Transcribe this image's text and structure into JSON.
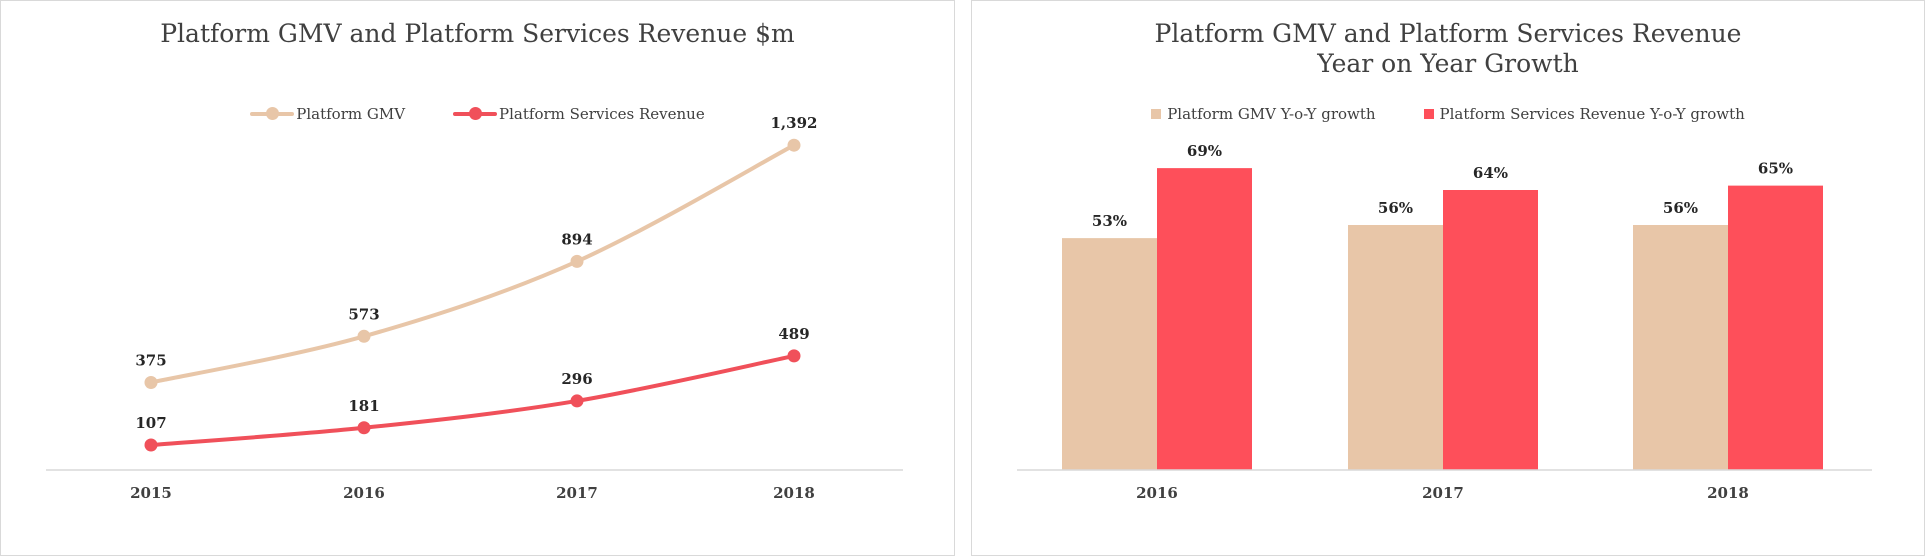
{
  "charts": {
    "left": {
      "title": "Platform GMV and Platform Services Revenue $m",
      "legend": [
        "Platform GMV",
        "Platform Services Revenue"
      ]
    },
    "right": {
      "title_line1": "Platform GMV and Platform Services Revenue",
      "title_line2": "Year on Year Growth",
      "legend": [
        "Platform GMV Y-o-Y growth",
        "Platform Services Revenue  Y-o-Y growth"
      ]
    }
  },
  "chart_data": [
    {
      "type": "line",
      "title": "Platform GMV and Platform Services Revenue $m",
      "categories": [
        "2015",
        "2016",
        "2017",
        "2018"
      ],
      "series": [
        {
          "name": "Platform GMV",
          "values": [
            375,
            573,
            894,
            1392
          ],
          "labels": [
            "375",
            "573",
            "894",
            "1,392"
          ],
          "color": "#e8c6a8"
        },
        {
          "name": "Platform Services Revenue",
          "values": [
            107,
            181,
            296,
            489
          ],
          "labels": [
            "107",
            "181",
            "296",
            "489"
          ],
          "color": "#f0505a"
        }
      ],
      "ylim": [
        0,
        1500
      ],
      "grid": false,
      "legend_position": "top"
    },
    {
      "type": "bar",
      "title": "Platform GMV and Platform Services Revenue Year on Year Growth",
      "categories": [
        "2016",
        "2017",
        "2018"
      ],
      "series": [
        {
          "name": "Platform GMV Y-o-Y growth",
          "values": [
            53,
            56,
            56
          ],
          "labels": [
            "53%",
            "56%",
            "56%"
          ],
          "color": "#e8c6a8"
        },
        {
          "name": "Platform Services Revenue  Y-o-Y growth",
          "values": [
            69,
            64,
            65
          ],
          "labels": [
            "69%",
            "64%",
            "65%"
          ],
          "color": "#fe4f5a"
        }
      ],
      "ylim": [
        0,
        80
      ],
      "grid": false,
      "legend_position": "top"
    }
  ]
}
